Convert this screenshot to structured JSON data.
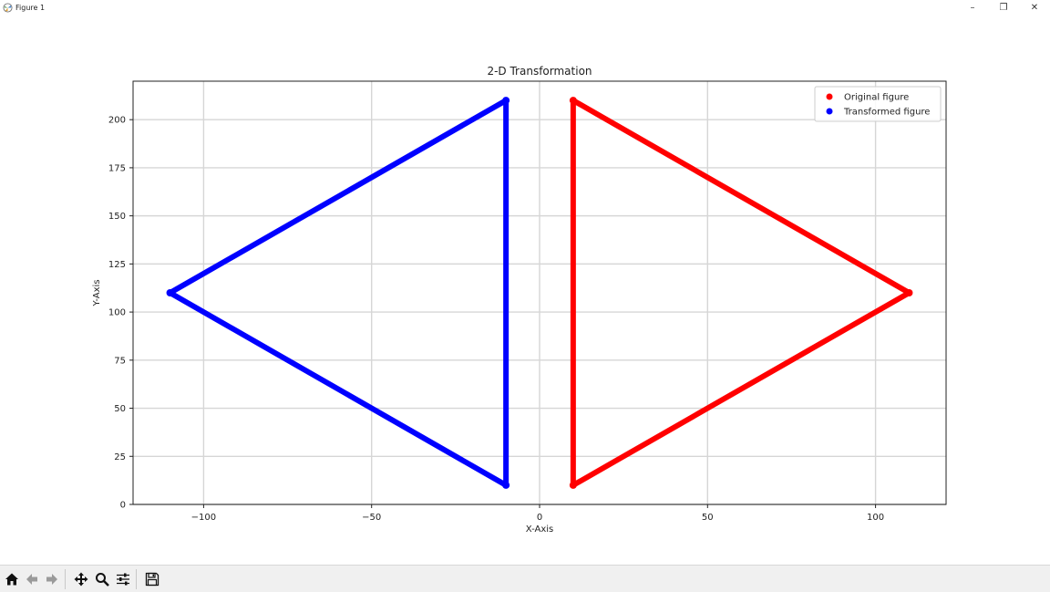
{
  "window": {
    "title": "Figure 1",
    "minimize_glyph": "–",
    "maximize_glyph": "❐",
    "close_glyph": "✕"
  },
  "toolbar": {
    "buttons": [
      {
        "name": "home-button",
        "icon": "home-icon"
      },
      {
        "name": "back-button",
        "icon": "arrow-left-icon"
      },
      {
        "name": "forward-button",
        "icon": "arrow-right-icon"
      },
      {
        "name": "pan-button",
        "icon": "move-icon"
      },
      {
        "name": "zoom-button",
        "icon": "magnifier-icon"
      },
      {
        "name": "configure-subplots-button",
        "icon": "sliders-icon"
      },
      {
        "name": "save-button",
        "icon": "floppy-icon"
      }
    ]
  },
  "chart_data": {
    "type": "scatter",
    "title": "2-D Transformation",
    "xlabel": "X-Axis",
    "ylabel": "Y-Axis",
    "xlim": [
      -121,
      121
    ],
    "ylim": [
      0,
      220
    ],
    "x_ticks": [
      -100,
      -50,
      0,
      50,
      100
    ],
    "x_tick_labels": [
      "−100",
      "−50",
      "0",
      "50",
      "100"
    ],
    "y_ticks": [
      0,
      25,
      50,
      75,
      100,
      125,
      150,
      175,
      200
    ],
    "y_tick_labels": [
      "0",
      "25",
      "50",
      "75",
      "100",
      "125",
      "150",
      "175",
      "200"
    ],
    "grid": true,
    "legend_position": "top-right",
    "series": [
      {
        "name": "Original figure",
        "color": "#ff0000",
        "vertices": [
          [
            10,
            10
          ],
          [
            10,
            210
          ],
          [
            110,
            110
          ]
        ]
      },
      {
        "name": "Transformed figure",
        "color": "#0000ff",
        "vertices": [
          [
            -10,
            10
          ],
          [
            -10,
            210
          ],
          [
            -110,
            110
          ]
        ]
      }
    ]
  }
}
